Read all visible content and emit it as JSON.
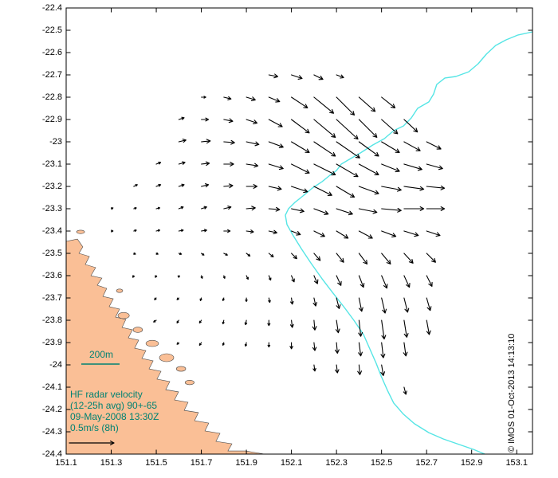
{
  "colors": {
    "land": "#fabf96",
    "contour": "#55e5e5",
    "annotation": "#008272",
    "vector": "#000000",
    "axis": "#000000",
    "background": "#ffffff"
  },
  "chart_data": {
    "type": "quiver",
    "title": "",
    "xlabel": "",
    "ylabel": "",
    "grid": false,
    "xlim": [
      151.1,
      153.17
    ],
    "ylim": [
      -24.4,
      -22.4
    ],
    "xticks": [
      "151.1",
      "151.3",
      "151.5",
      "151.7",
      "151.9",
      "152.1",
      "152.3",
      "152.5",
      "152.7",
      "152.9",
      "153.1"
    ],
    "yticks": [
      "-22.4",
      "-22.5",
      "-22.6",
      "-22.7",
      "-22.8",
      "-22.9",
      "-23",
      "-23.1",
      "-23.2",
      "-23.3",
      "-23.4",
      "-23.5",
      "-23.6",
      "-23.7",
      "-23.8",
      "-23.9",
      "-24",
      "-24.1",
      "-24.2",
      "-24.3",
      "-24.4"
    ],
    "annotations": {
      "contour_label": "200m",
      "info_lines": [
        "HF radar velocity",
        "(12-25h avg) 90+-65",
        "09-May-2008 13:30Z",
        "0.5m/s (8h)"
      ],
      "watermark": "© IMOS 01-Oct-2013 14:13:10"
    },
    "scale": {
      "value_ms": 0.5
    },
    "vectors": [
      [
        152.0,
        -22.7,
        0.1,
        -0.02
      ],
      [
        152.1,
        -22.7,
        0.12,
        -0.04
      ],
      [
        152.2,
        -22.7,
        0.1,
        -0.05
      ],
      [
        152.3,
        -22.7,
        0.08,
        -0.03
      ],
      [
        151.7,
        -22.8,
        0.05,
        0.0
      ],
      [
        151.8,
        -22.8,
        0.08,
        -0.02
      ],
      [
        151.9,
        -22.8,
        0.1,
        -0.03
      ],
      [
        152.0,
        -22.8,
        0.12,
        -0.05
      ],
      [
        152.1,
        -22.8,
        0.18,
        -0.12
      ],
      [
        152.2,
        -22.8,
        0.22,
        -0.18
      ],
      [
        152.3,
        -22.8,
        0.2,
        -0.2
      ],
      [
        152.4,
        -22.8,
        0.18,
        -0.16
      ],
      [
        152.5,
        -22.8,
        0.15,
        -0.12
      ],
      [
        151.6,
        -22.9,
        0.06,
        0.02
      ],
      [
        151.7,
        -22.9,
        0.08,
        0.0
      ],
      [
        151.8,
        -22.9,
        0.1,
        -0.02
      ],
      [
        151.9,
        -22.9,
        0.12,
        -0.04
      ],
      [
        152.0,
        -22.9,
        0.15,
        -0.08
      ],
      [
        152.1,
        -22.9,
        0.2,
        -0.15
      ],
      [
        152.2,
        -22.9,
        0.24,
        -0.2
      ],
      [
        152.3,
        -22.9,
        0.24,
        -0.22
      ],
      [
        152.4,
        -22.9,
        0.2,
        -0.2
      ],
      [
        152.5,
        -22.9,
        0.18,
        -0.16
      ],
      [
        152.6,
        -22.9,
        0.15,
        -0.14
      ],
      [
        151.6,
        -23.0,
        0.08,
        0.02
      ],
      [
        151.7,
        -23.0,
        0.1,
        0.01
      ],
      [
        151.8,
        -23.0,
        0.12,
        -0.01
      ],
      [
        151.9,
        -23.0,
        0.14,
        -0.03
      ],
      [
        152.0,
        -23.0,
        0.16,
        -0.06
      ],
      [
        152.1,
        -23.0,
        0.2,
        -0.12
      ],
      [
        152.2,
        -23.0,
        0.24,
        -0.16
      ],
      [
        152.3,
        -23.0,
        0.26,
        -0.18
      ],
      [
        152.4,
        -23.0,
        0.22,
        -0.16
      ],
      [
        152.5,
        -23.0,
        0.2,
        -0.12
      ],
      [
        152.6,
        -23.0,
        0.18,
        -0.1
      ],
      [
        152.7,
        -23.0,
        0.16,
        -0.08
      ],
      [
        151.5,
        -23.1,
        0.05,
        0.02
      ],
      [
        151.6,
        -23.1,
        0.07,
        0.02
      ],
      [
        151.7,
        -23.1,
        0.09,
        0.01
      ],
      [
        151.8,
        -23.1,
        0.11,
        0.0
      ],
      [
        151.9,
        -23.1,
        0.13,
        -0.02
      ],
      [
        152.0,
        -23.1,
        0.16,
        -0.05
      ],
      [
        152.1,
        -23.1,
        0.2,
        -0.1
      ],
      [
        152.2,
        -23.1,
        0.24,
        -0.12
      ],
      [
        152.3,
        -23.1,
        0.24,
        -0.14
      ],
      [
        152.4,
        -23.1,
        0.22,
        -0.12
      ],
      [
        152.5,
        -23.1,
        0.2,
        -0.08
      ],
      [
        152.6,
        -23.1,
        0.2,
        -0.06
      ],
      [
        152.7,
        -23.1,
        0.18,
        -0.05
      ],
      [
        151.4,
        -23.2,
        0.04,
        0.02
      ],
      [
        151.5,
        -23.2,
        0.05,
        0.02
      ],
      [
        151.6,
        -23.2,
        0.06,
        0.02
      ],
      [
        151.7,
        -23.2,
        0.08,
        0.02
      ],
      [
        151.8,
        -23.2,
        0.1,
        0.01
      ],
      [
        151.9,
        -23.2,
        0.12,
        0.0
      ],
      [
        152.0,
        -23.2,
        0.14,
        -0.03
      ],
      [
        152.1,
        -23.2,
        0.18,
        -0.06
      ],
      [
        152.2,
        -23.2,
        0.2,
        -0.1
      ],
      [
        152.3,
        -23.2,
        0.2,
        -0.12
      ],
      [
        152.4,
        -23.2,
        0.22,
        -0.08
      ],
      [
        152.5,
        -23.2,
        0.22,
        -0.04
      ],
      [
        152.6,
        -23.2,
        0.22,
        -0.03
      ],
      [
        152.7,
        -23.2,
        0.2,
        -0.02
      ],
      [
        151.3,
        -23.3,
        0.02,
        0.01
      ],
      [
        151.4,
        -23.3,
        0.03,
        0.01
      ],
      [
        151.5,
        -23.3,
        0.04,
        0.01
      ],
      [
        151.6,
        -23.3,
        0.05,
        0.02
      ],
      [
        151.7,
        -23.3,
        0.06,
        0.02
      ],
      [
        151.8,
        -23.3,
        0.08,
        0.02
      ],
      [
        151.9,
        -23.3,
        0.1,
        0.01
      ],
      [
        152.0,
        -23.3,
        0.12,
        -0.01
      ],
      [
        152.1,
        -23.3,
        0.14,
        -0.03
      ],
      [
        152.2,
        -23.3,
        0.16,
        -0.06
      ],
      [
        152.3,
        -23.3,
        0.18,
        -0.06
      ],
      [
        152.4,
        -23.3,
        0.2,
        -0.04
      ],
      [
        152.5,
        -23.3,
        0.22,
        -0.02
      ],
      [
        152.6,
        -23.3,
        0.22,
        0.0
      ],
      [
        152.7,
        -23.3,
        0.2,
        0.0
      ],
      [
        151.3,
        -23.4,
        0.02,
        0.0
      ],
      [
        151.4,
        -23.4,
        0.03,
        0.01
      ],
      [
        151.5,
        -23.4,
        0.04,
        0.01
      ],
      [
        151.6,
        -23.4,
        0.05,
        0.01
      ],
      [
        151.7,
        -23.4,
        0.06,
        0.01
      ],
      [
        151.8,
        -23.4,
        0.07,
        0.0
      ],
      [
        151.9,
        -23.4,
        0.08,
        -0.01
      ],
      [
        152.0,
        -23.4,
        0.09,
        -0.02
      ],
      [
        152.1,
        -23.4,
        0.1,
        -0.04
      ],
      [
        152.2,
        -23.4,
        0.12,
        -0.06
      ],
      [
        152.3,
        -23.4,
        0.13,
        -0.08
      ],
      [
        152.4,
        -23.4,
        0.15,
        -0.08
      ],
      [
        152.5,
        -23.4,
        0.16,
        -0.06
      ],
      [
        152.6,
        -23.4,
        0.16,
        -0.05
      ],
      [
        152.7,
        -23.4,
        0.15,
        -0.05
      ],
      [
        151.4,
        -23.5,
        0.02,
        -0.01
      ],
      [
        151.5,
        -23.5,
        0.02,
        -0.01
      ],
      [
        151.6,
        -23.5,
        0.03,
        -0.01
      ],
      [
        151.7,
        -23.5,
        0.03,
        -0.02
      ],
      [
        151.8,
        -23.5,
        0.04,
        -0.02
      ],
      [
        151.9,
        -23.5,
        0.04,
        -0.03
      ],
      [
        152.0,
        -23.5,
        0.05,
        -0.04
      ],
      [
        152.1,
        -23.5,
        0.06,
        -0.06
      ],
      [
        152.2,
        -23.5,
        0.07,
        -0.08
      ],
      [
        152.3,
        -23.5,
        0.08,
        -0.1
      ],
      [
        152.4,
        -23.5,
        0.09,
        -0.12
      ],
      [
        152.5,
        -23.5,
        0.1,
        -0.12
      ],
      [
        152.6,
        -23.5,
        0.1,
        -0.11
      ],
      [
        152.7,
        -23.5,
        0.1,
        -0.1
      ],
      [
        151.4,
        -23.6,
        -0.01,
        -0.02
      ],
      [
        151.5,
        -23.6,
        -0.01,
        -0.02
      ],
      [
        151.6,
        -23.6,
        0.0,
        -0.02
      ],
      [
        151.7,
        -23.6,
        0.01,
        -0.03
      ],
      [
        151.8,
        -23.6,
        0.01,
        -0.03
      ],
      [
        151.9,
        -23.6,
        0.02,
        -0.04
      ],
      [
        152.0,
        -23.6,
        0.02,
        -0.05
      ],
      [
        152.1,
        -23.6,
        0.03,
        -0.07
      ],
      [
        152.2,
        -23.6,
        0.04,
        -0.09
      ],
      [
        152.3,
        -23.6,
        0.05,
        -0.11
      ],
      [
        152.4,
        -23.6,
        0.05,
        -0.13
      ],
      [
        152.5,
        -23.6,
        0.06,
        -0.14
      ],
      [
        152.6,
        -23.6,
        0.06,
        -0.13
      ],
      [
        152.7,
        -23.6,
        0.06,
        -0.12
      ],
      [
        151.5,
        -23.7,
        -0.02,
        -0.02
      ],
      [
        151.6,
        -23.7,
        -0.02,
        -0.02
      ],
      [
        151.7,
        -23.7,
        -0.01,
        -0.03
      ],
      [
        151.8,
        -23.7,
        -0.01,
        -0.03
      ],
      [
        151.9,
        -23.7,
        0.0,
        -0.04
      ],
      [
        152.0,
        -23.7,
        0.01,
        -0.05
      ],
      [
        152.1,
        -23.7,
        0.01,
        -0.07
      ],
      [
        152.2,
        -23.7,
        0.02,
        -0.09
      ],
      [
        152.3,
        -23.7,
        0.03,
        -0.12
      ],
      [
        152.4,
        -23.7,
        0.03,
        -0.15
      ],
      [
        152.5,
        -23.7,
        0.04,
        -0.17
      ],
      [
        152.6,
        -23.7,
        0.04,
        -0.16
      ],
      [
        152.7,
        -23.7,
        0.04,
        -0.14
      ],
      [
        151.5,
        -23.8,
        -0.03,
        -0.02
      ],
      [
        151.6,
        -23.8,
        -0.02,
        -0.03
      ],
      [
        151.7,
        -23.8,
        -0.02,
        -0.03
      ],
      [
        151.8,
        -23.8,
        -0.01,
        -0.04
      ],
      [
        151.9,
        -23.8,
        -0.01,
        -0.05
      ],
      [
        152.0,
        -23.8,
        0.0,
        -0.06
      ],
      [
        152.1,
        -23.8,
        0.01,
        -0.08
      ],
      [
        152.2,
        -23.8,
        0.01,
        -0.11
      ],
      [
        152.3,
        -23.8,
        0.02,
        -0.14
      ],
      [
        152.4,
        -23.8,
        0.02,
        -0.18
      ],
      [
        152.5,
        -23.8,
        0.03,
        -0.21
      ],
      [
        152.6,
        -23.8,
        0.03,
        -0.19
      ],
      [
        152.7,
        -23.8,
        0.03,
        -0.16
      ],
      [
        151.6,
        -23.9,
        -0.02,
        -0.02
      ],
      [
        151.7,
        -23.9,
        -0.02,
        -0.03
      ],
      [
        151.8,
        -23.9,
        -0.01,
        -0.03
      ],
      [
        151.9,
        -23.9,
        -0.01,
        -0.04
      ],
      [
        152.0,
        -23.9,
        0.0,
        -0.05
      ],
      [
        152.1,
        -23.9,
        0.0,
        -0.07
      ],
      [
        152.2,
        -23.9,
        0.01,
        -0.09
      ],
      [
        152.3,
        -23.9,
        0.01,
        -0.12
      ],
      [
        152.4,
        -23.9,
        0.02,
        -0.15
      ],
      [
        152.5,
        -23.9,
        0.02,
        -0.17
      ],
      [
        152.6,
        -23.9,
        0.02,
        -0.15
      ],
      [
        152.2,
        -24.0,
        0.01,
        -0.07
      ],
      [
        152.3,
        -24.0,
        0.01,
        -0.09
      ],
      [
        152.4,
        -24.0,
        0.01,
        -0.11
      ],
      [
        152.5,
        -24.0,
        0.02,
        -0.12
      ],
      [
        152.6,
        -24.1,
        0.02,
        -0.08
      ]
    ],
    "contour_200m": [
      [
        153.17,
        -22.507
      ],
      [
        153.106,
        -22.521
      ],
      [
        153.053,
        -22.543
      ],
      [
        153.007,
        -22.568
      ],
      [
        152.965,
        -22.607
      ],
      [
        152.929,
        -22.65
      ],
      [
        152.887,
        -22.686
      ],
      [
        152.83,
        -22.707
      ],
      [
        152.781,
        -22.714
      ],
      [
        152.745,
        -22.743
      ],
      [
        152.731,
        -22.786
      ],
      [
        152.71,
        -22.821
      ],
      [
        152.66,
        -22.85
      ],
      [
        152.632,
        -22.893
      ],
      [
        152.597,
        -22.929
      ],
      [
        152.554,
        -22.95
      ],
      [
        152.512,
        -22.986
      ],
      [
        152.462,
        -23.014
      ],
      [
        152.406,
        -23.05
      ],
      [
        152.356,
        -23.079
      ],
      [
        152.321,
        -23.1
      ],
      [
        152.3,
        -23.129
      ],
      [
        152.271,
        -23.15
      ],
      [
        152.236,
        -23.179
      ],
      [
        152.193,
        -23.207
      ],
      [
        152.151,
        -23.243
      ],
      [
        152.116,
        -23.271
      ],
      [
        152.087,
        -23.3
      ],
      [
        152.073,
        -23.329
      ],
      [
        152.08,
        -23.371
      ],
      [
        152.108,
        -23.421
      ],
      [
        152.144,
        -23.479
      ],
      [
        152.186,
        -23.543
      ],
      [
        152.236,
        -23.614
      ],
      [
        152.285,
        -23.679
      ],
      [
        152.335,
        -23.743
      ],
      [
        152.377,
        -23.8
      ],
      [
        152.42,
        -23.864
      ],
      [
        152.448,
        -23.929
      ],
      [
        152.476,
        -23.993
      ],
      [
        152.498,
        -24.05
      ],
      [
        152.526,
        -24.114
      ],
      [
        152.554,
        -24.171
      ],
      [
        152.597,
        -24.221
      ],
      [
        152.646,
        -24.264
      ],
      [
        152.71,
        -24.304
      ],
      [
        152.774,
        -24.332
      ],
      [
        152.845,
        -24.357
      ],
      [
        152.908,
        -24.379
      ],
      [
        152.958,
        -24.4
      ]
    ],
    "coastline": [
      [
        151.1,
        -23.446
      ],
      [
        151.15,
        -23.436
      ],
      [
        151.174,
        -23.471
      ],
      [
        151.157,
        -23.5
      ],
      [
        151.203,
        -23.514
      ],
      [
        151.185,
        -23.55
      ],
      [
        151.231,
        -23.564
      ],
      [
        151.21,
        -23.6
      ],
      [
        151.259,
        -23.611
      ],
      [
        151.238,
        -23.643
      ],
      [
        151.28,
        -23.657
      ],
      [
        151.263,
        -23.693
      ],
      [
        151.309,
        -23.704
      ],
      [
        151.291,
        -23.739
      ],
      [
        151.337,
        -23.75
      ],
      [
        151.319,
        -23.786
      ],
      [
        151.365,
        -23.796
      ],
      [
        151.348,
        -23.832
      ],
      [
        151.394,
        -23.843
      ],
      [
        151.376,
        -23.879
      ],
      [
        151.422,
        -23.889
      ],
      [
        151.404,
        -23.925
      ],
      [
        151.454,
        -23.936
      ],
      [
        151.436,
        -23.971
      ],
      [
        151.486,
        -23.982
      ],
      [
        151.468,
        -24.018
      ],
      [
        151.521,
        -24.029
      ],
      [
        151.503,
        -24.064
      ],
      [
        151.56,
        -24.075
      ],
      [
        151.542,
        -24.111
      ],
      [
        151.599,
        -24.121
      ],
      [
        151.581,
        -24.157
      ],
      [
        151.641,
        -24.168
      ],
      [
        151.624,
        -24.204
      ],
      [
        151.687,
        -24.214
      ],
      [
        151.67,
        -24.25
      ],
      [
        151.733,
        -24.261
      ],
      [
        151.716,
        -24.296
      ],
      [
        151.783,
        -24.307
      ],
      [
        151.765,
        -24.343
      ],
      [
        151.836,
        -24.354
      ],
      [
        151.818,
        -24.386
      ],
      [
        151.896,
        -24.386
      ],
      [
        151.981,
        -24.4
      ]
    ],
    "islands": [
      [
        151.355,
        -23.779,
        0.025,
        0.014
      ],
      [
        151.418,
        -23.843,
        0.021,
        0.012
      ],
      [
        151.482,
        -23.904,
        0.028,
        0.014
      ],
      [
        151.546,
        -23.968,
        0.032,
        0.018
      ],
      [
        151.61,
        -24.018,
        0.021,
        0.011
      ],
      [
        151.164,
        -23.404,
        0.018,
        0.008
      ],
      [
        151.648,
        -24.079,
        0.02,
        0.01
      ],
      [
        151.337,
        -23.668,
        0.014,
        0.008
      ]
    ]
  }
}
